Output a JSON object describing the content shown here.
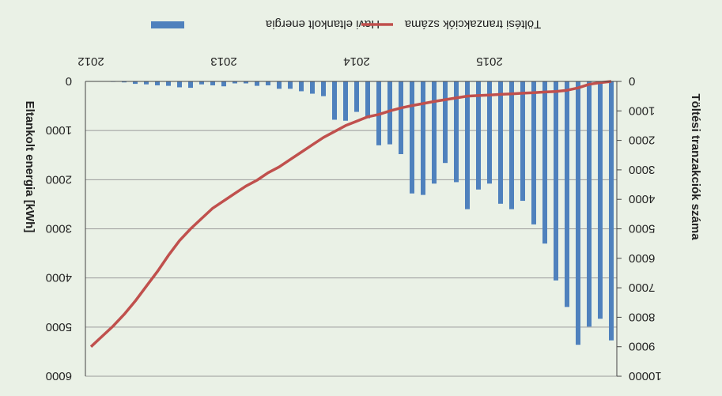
{
  "chart_data": {
    "type": "bar",
    "orientation": "rotated-180",
    "x": [
      "2012-01",
      "2012-02",
      "2012-03",
      "2012-04",
      "2012-05",
      "2012-06",
      "2012-07",
      "2012-08",
      "2012-09",
      "2012-10",
      "2012-11",
      "2012-12",
      "2013-01",
      "2013-02",
      "2013-03",
      "2013-04",
      "2013-05",
      "2013-06",
      "2013-07",
      "2013-08",
      "2013-09",
      "2013-10",
      "2013-11",
      "2013-12",
      "2014-01",
      "2014-02",
      "2014-03",
      "2014-04",
      "2014-05",
      "2014-06",
      "2014-07",
      "2014-08",
      "2014-09",
      "2014-10",
      "2014-11",
      "2014-12",
      "2015-01",
      "2015-02",
      "2015-03",
      "2015-04",
      "2015-05",
      "2015-06",
      "2015-07",
      "2015-08",
      "2015-09",
      "2015-10",
      "2015-11",
      "2015-12"
    ],
    "x_tick_labels": [
      "2012",
      "2013",
      "2014",
      "2015"
    ],
    "series": [
      {
        "name": "Havi eltankolt energia",
        "axis": "left",
        "color": "#4f81bd",
        "values": [
          0,
          5,
          10,
          20,
          50,
          60,
          80,
          90,
          120,
          130,
          60,
          80,
          100,
          40,
          40,
          90,
          80,
          150,
          150,
          200,
          250,
          300,
          780,
          800,
          620,
          750,
          1300,
          1280,
          1480,
          2280,
          2310,
          2080,
          1660,
          2050,
          2600,
          2200,
          2080,
          2490,
          2600,
          2430,
          2910,
          3300,
          4050,
          4590,
          5360,
          4990,
          4830,
          5270
        ],
        "plot_order": "reverse-time"
      },
      {
        "name": "Töltési tranzakciók száma",
        "axis": "right",
        "type": "line",
        "color": "#c0504d",
        "values": [
          9000,
          8650,
          8300,
          7900,
          7450,
          6950,
          6450,
          5900,
          5400,
          5000,
          4650,
          4300,
          4050,
          3800,
          3550,
          3350,
          3100,
          2900,
          2650,
          2400,
          2150,
          1900,
          1700,
          1500,
          1350,
          1200,
          1120,
          1000,
          900,
          820,
          750,
          680,
          620,
          560,
          500,
          480,
          460,
          440,
          420,
          400,
          380,
          360,
          340,
          300,
          220,
          100,
          40,
          0
        ],
        "plot_order": "reverse-time"
      }
    ],
    "y_left": {
      "label": "Eltankolt energia [kWh]",
      "ticks": [
        "0",
        "1000",
        "2000",
        "3000",
        "4000",
        "5000",
        "6000"
      ],
      "ylim": [
        0,
        6000
      ]
    },
    "y_right": {
      "label": "Töltési tranzakciók száma",
      "ticks": [
        "0",
        "1000",
        "2000",
        "3000",
        "4000",
        "5000",
        "6000",
        "7000",
        "8000",
        "9000",
        "10000"
      ],
      "ylim": [
        0,
        10000
      ]
    },
    "grid": true,
    "legend_position": "top-right"
  }
}
